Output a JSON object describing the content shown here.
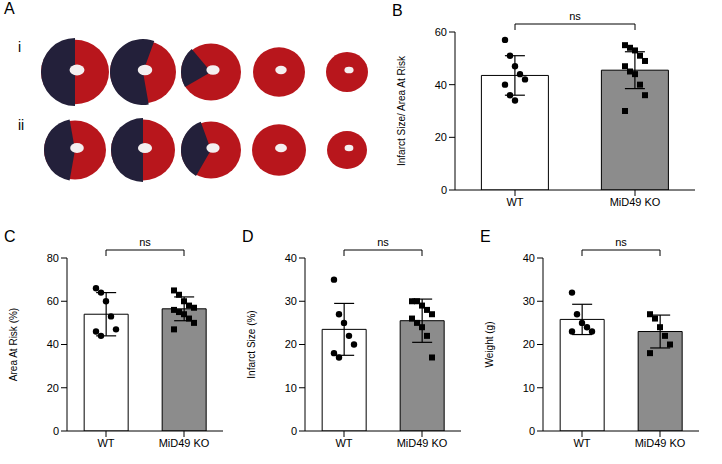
{
  "image_panel": {
    "panel": "A",
    "rows": [
      "i",
      "ii"
    ]
  },
  "chart_data": [
    {
      "panel": "B",
      "type": "bar",
      "y_label": "Infarct Size/ Area At Risk",
      "categories": [
        "WT",
        "MiD49 KO"
      ],
      "values": [
        43.5,
        45.5
      ],
      "errors": [
        7.5,
        7
      ],
      "points": [
        {
          "marker": "circle",
          "values": [
            57,
            51,
            47,
            44,
            42,
            40,
            36,
            34
          ]
        },
        {
          "marker": "square",
          "values": [
            55,
            54,
            53,
            51,
            49,
            47,
            45,
            44,
            40,
            36,
            30
          ]
        }
      ],
      "colors": [
        "#ffffff",
        "#8c8c8c"
      ],
      "annotation": "ns",
      "ylim": [
        0,
        60
      ],
      "yticks": [
        0,
        20,
        40,
        60
      ]
    },
    {
      "panel": "C",
      "type": "bar",
      "y_label": "Area At Risk (%)",
      "categories": [
        "WT",
        "MiD49 KO"
      ],
      "values": [
        54,
        56.5
      ],
      "errors": [
        10,
        5.5
      ],
      "points": [
        {
          "marker": "circle",
          "values": [
            66,
            64,
            60,
            53,
            47,
            46,
            44
          ]
        },
        {
          "marker": "square",
          "values": [
            65,
            63,
            60,
            58,
            57,
            56,
            55,
            54,
            52,
            50,
            47
          ]
        }
      ],
      "colors": [
        "#ffffff",
        "#8c8c8c"
      ],
      "annotation": "ns",
      "ylim": [
        0,
        80
      ],
      "yticks": [
        0,
        20,
        40,
        60,
        80
      ]
    },
    {
      "panel": "D",
      "type": "bar",
      "y_label": "Infarct Size (%)",
      "categories": [
        "WT",
        "MiD49 KO"
      ],
      "values": [
        23.5,
        25.5
      ],
      "errors": [
        6,
        5
      ],
      "points": [
        {
          "marker": "circle",
          "values": [
            35,
            27,
            25,
            22,
            20,
            18,
            17
          ]
        },
        {
          "marker": "square",
          "values": [
            30,
            30,
            29,
            28,
            27,
            26,
            25,
            24,
            22,
            17
          ]
        }
      ],
      "colors": [
        "#ffffff",
        "#8c8c8c"
      ],
      "annotation": "ns",
      "ylim": [
        0,
        40
      ],
      "yticks": [
        0,
        10,
        20,
        30,
        40
      ]
    },
    {
      "panel": "E",
      "type": "bar",
      "y_label": "Weight (g)",
      "categories": [
        "WT",
        "MiD49 KO"
      ],
      "values": [
        25.8,
        23
      ],
      "errors": [
        3.5,
        3.8
      ],
      "points": [
        {
          "marker": "circle",
          "values": [
            32,
            27,
            25,
            24,
            23,
            23
          ]
        },
        {
          "marker": "square",
          "values": [
            27,
            26,
            24,
            22,
            20,
            18
          ]
        }
      ],
      "colors": [
        "#ffffff",
        "#8c8c8c"
      ],
      "annotation": "ns",
      "ylim": [
        0,
        40
      ],
      "yticks": [
        0,
        10,
        20,
        30,
        40
      ]
    }
  ]
}
